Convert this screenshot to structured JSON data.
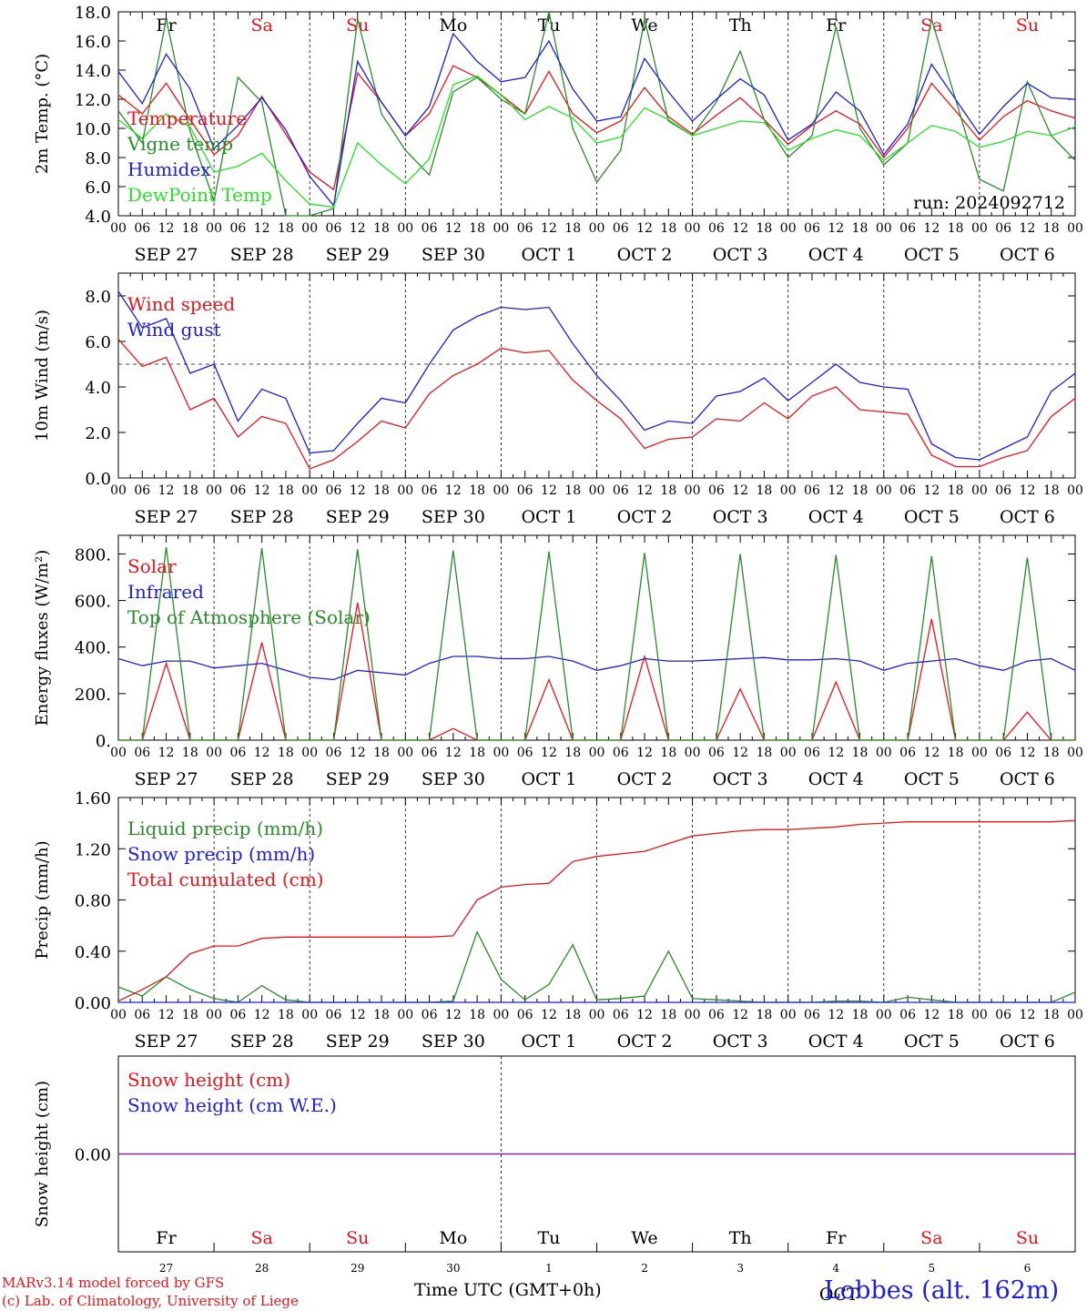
{
  "colors": {
    "red": "#e8141c",
    "green": "#2a8a2a",
    "blue": "#1c1ce0",
    "lightgreen": "#28e028",
    "purple": "#7a2a9a",
    "black": "#000000"
  },
  "weekdays": [
    "Fr",
    "Sa",
    "Su",
    "Mo",
    "Tu",
    "We",
    "Th",
    "Fr",
    "Sa",
    "Su"
  ],
  "weekend_days": [
    1,
    2,
    8,
    9
  ],
  "date_labels": [
    "SEP 27",
    "SEP 28",
    "SEP 29",
    "SEP 30",
    "OCT  1",
    "OCT  2",
    "OCT  3",
    "OCT  4",
    "OCT  5",
    "OCT  6"
  ],
  "hour_ticks": [
    "00",
    "06",
    "12",
    "18"
  ],
  "hour_tick_end": "00",
  "day_numbers": [
    "27",
    "28",
    "29",
    "30",
    "1",
    "2",
    "3",
    "4",
    "5",
    "6"
  ],
  "month_bottom": "OCT",
  "footer": {
    "model": "MARv3.14 model forced by GFS",
    "lab": "(c) Lab. of Climatology, University of Liege",
    "xlabel": "Time UTC (GMT+0h)",
    "station": "Lobbes (alt. 162m)"
  },
  "chart_data": [
    {
      "type": "line",
      "ylabel": "2m Temp. (°C)",
      "ylim": [
        4,
        18
      ],
      "yticks": [
        "4.0",
        "6.0",
        "8.0",
        "10.0",
        "12.0",
        "14.0",
        "16.0",
        "18.0"
      ],
      "annotation": "run: 2024092712",
      "x_hours": [
        0,
        6,
        12,
        18,
        24,
        30,
        36,
        42,
        48,
        54,
        60,
        66,
        72,
        78,
        84,
        90,
        96,
        102,
        108,
        114,
        120,
        126,
        132,
        138,
        144,
        150,
        156,
        162,
        168,
        174,
        180,
        186,
        192,
        198,
        204,
        210,
        216,
        222,
        228,
        234,
        240
      ],
      "series": [
        {
          "name": "Temperature",
          "color": "red",
          "values": [
            12.3,
            11.0,
            13.1,
            10.6,
            8.2,
            9.5,
            12.2,
            9.6,
            7.0,
            5.8,
            13.8,
            11.8,
            9.5,
            11.0,
            14.3,
            13.5,
            12.3,
            11.0,
            13.9,
            11.0,
            9.7,
            10.5,
            12.8,
            10.8,
            9.6,
            10.9,
            12.1,
            10.6,
            8.9,
            10.2,
            11.2,
            10.3,
            8.0,
            10.0,
            13.1,
            11.2,
            9.2,
            10.8,
            11.9,
            11.2,
            10.7
          ]
        },
        {
          "name": "Vigne temp",
          "color": "green",
          "values": [
            11.2,
            9.0,
            17.5,
            9.8,
            5.0,
            13.5,
            11.8,
            4.0,
            4.0,
            4.5,
            17.5,
            11.0,
            8.5,
            6.8,
            12.5,
            13.5,
            12.0,
            11.0,
            18.0,
            10.0,
            6.3,
            8.5,
            17.5,
            10.5,
            9.5,
            11.8,
            15.3,
            10.6,
            8.0,
            9.5,
            17.0,
            10.0,
            7.5,
            9.0,
            17.5,
            12.0,
            6.5,
            5.7,
            13.2,
            9.5,
            7.8
          ]
        },
        {
          "name": "Humidex",
          "color": "blue",
          "values": [
            13.9,
            11.7,
            15.1,
            12.7,
            8.6,
            10.2,
            12.1,
            9.9,
            6.7,
            4.7,
            14.6,
            11.8,
            9.5,
            11.5,
            16.5,
            14.6,
            13.2,
            13.5,
            16.0,
            12.7,
            10.5,
            10.8,
            14.8,
            12.5,
            10.5,
            12.0,
            13.4,
            12.3,
            9.2,
            10.3,
            12.5,
            11.2,
            8.2,
            10.3,
            14.4,
            12.0,
            9.6,
            11.5,
            13.1,
            12.1,
            12.0
          ]
        },
        {
          "name": "DewPoint Temp",
          "color": "lightgreen",
          "values": [
            10.6,
            9.3,
            11.0,
            10.1,
            7.0,
            7.4,
            8.3,
            6.4,
            4.8,
            4.6,
            9.0,
            7.5,
            6.2,
            7.9,
            13.0,
            13.6,
            12.3,
            10.6,
            11.5,
            10.7,
            9.0,
            9.4,
            11.4,
            10.6,
            9.5,
            10.0,
            10.5,
            10.4,
            8.5,
            9.3,
            9.9,
            9.5,
            7.8,
            9.0,
            10.2,
            9.8,
            8.7,
            9.1,
            9.8,
            9.5,
            10.1
          ]
        }
      ]
    },
    {
      "type": "line",
      "ylabel": "10m Wind (m/s)",
      "ylim": [
        0,
        9
      ],
      "yticks": [
        "0.0",
        "2.0",
        "4.0",
        "6.0",
        "8.0"
      ],
      "reference_line": 5.0,
      "x_hours": [
        0,
        6,
        12,
        18,
        24,
        30,
        36,
        42,
        48,
        54,
        60,
        66,
        72,
        78,
        84,
        90,
        96,
        102,
        108,
        114,
        120,
        126,
        132,
        138,
        144,
        150,
        156,
        162,
        168,
        174,
        180,
        186,
        192,
        198,
        204,
        210,
        216,
        222,
        228,
        234,
        240
      ],
      "series": [
        {
          "name": "Wind speed",
          "color": "red",
          "values": [
            6.1,
            4.9,
            5.3,
            3.0,
            3.5,
            1.8,
            2.7,
            2.4,
            0.4,
            0.8,
            1.6,
            2.5,
            2.2,
            3.7,
            4.5,
            5.0,
            5.7,
            5.5,
            5.6,
            4.3,
            3.4,
            2.6,
            1.3,
            1.7,
            1.8,
            2.6,
            2.5,
            3.3,
            2.6,
            3.6,
            4.0,
            3.0,
            2.9,
            2.8,
            1.0,
            0.5,
            0.5,
            0.9,
            1.2,
            2.7,
            3.5
          ]
        },
        {
          "name": "Wind gust",
          "color": "blue",
          "values": [
            8.2,
            6.6,
            7.0,
            4.6,
            5.0,
            2.5,
            3.9,
            3.5,
            1.1,
            1.2,
            2.4,
            3.5,
            3.3,
            5.0,
            6.5,
            7.1,
            7.5,
            7.4,
            7.5,
            5.9,
            4.5,
            3.4,
            2.1,
            2.5,
            2.4,
            3.6,
            3.8,
            4.4,
            3.4,
            4.2,
            5.0,
            4.2,
            4.0,
            3.9,
            1.5,
            0.9,
            0.8,
            1.3,
            1.8,
            3.8,
            4.6
          ]
        }
      ]
    },
    {
      "type": "line",
      "ylabel": "Energy fluxes (W/m²)",
      "ylim": [
        0,
        880
      ],
      "yticks": [
        "0.",
        "200.",
        "400.",
        "600.",
        "800."
      ],
      "x_hours": [
        0,
        6,
        12,
        18,
        24,
        30,
        36,
        42,
        48,
        54,
        60,
        66,
        72,
        78,
        84,
        90,
        96,
        102,
        108,
        114,
        120,
        126,
        132,
        138,
        144,
        150,
        156,
        162,
        168,
        174,
        180,
        186,
        192,
        198,
        204,
        210,
        216,
        222,
        228,
        234,
        240
      ],
      "series": [
        {
          "name": "Solar",
          "color": "red",
          "values": [
            0,
            0,
            330,
            0,
            0,
            0,
            420,
            0,
            0,
            0,
            590,
            0,
            0,
            0,
            50,
            0,
            0,
            0,
            260,
            0,
            0,
            0,
            360,
            0,
            0,
            0,
            220,
            0,
            0,
            0,
            250,
            0,
            0,
            0,
            520,
            0,
            0,
            0,
            120,
            0,
            0
          ]
        },
        {
          "name": "Infrared",
          "color": "blue",
          "values": [
            350,
            320,
            340,
            340,
            310,
            320,
            330,
            300,
            270,
            260,
            300,
            290,
            280,
            330,
            360,
            360,
            350,
            350,
            360,
            340,
            300,
            320,
            350,
            340,
            340,
            345,
            350,
            355,
            345,
            345,
            350,
            340,
            300,
            330,
            340,
            350,
            320,
            300,
            340,
            350,
            300
          ]
        },
        {
          "name": "Top of Atmosphere (Solar)",
          "color": "green",
          "values": [
            0,
            0,
            830,
            0,
            0,
            0,
            825,
            0,
            0,
            0,
            820,
            0,
            0,
            0,
            815,
            0,
            0,
            0,
            810,
            0,
            0,
            0,
            805,
            0,
            0,
            0,
            800,
            0,
            0,
            0,
            795,
            0,
            0,
            0,
            790,
            0,
            0,
            0,
            785,
            0,
            0
          ]
        }
      ]
    },
    {
      "type": "line",
      "ylabel": "Precip (mm/h)",
      "ylim": [
        0,
        1.6
      ],
      "yticks": [
        "0.00",
        "0.40",
        "0.80",
        "1.20",
        "1.60"
      ],
      "x_hours": [
        0,
        6,
        12,
        18,
        24,
        30,
        36,
        42,
        48,
        54,
        60,
        66,
        72,
        78,
        84,
        90,
        96,
        102,
        108,
        114,
        120,
        126,
        132,
        138,
        144,
        150,
        156,
        162,
        168,
        174,
        180,
        186,
        192,
        198,
        204,
        210,
        216,
        222,
        228,
        234,
        240
      ],
      "series": [
        {
          "name": "Liquid precip (mm/h)",
          "color": "green",
          "values": [
            0.12,
            0.05,
            0.2,
            0.1,
            0.03,
            0.0,
            0.13,
            0.02,
            0.0,
            0.0,
            0.0,
            0.0,
            0.0,
            0.0,
            0.01,
            0.55,
            0.18,
            0.02,
            0.14,
            0.45,
            0.02,
            0.03,
            0.05,
            0.4,
            0.03,
            0.02,
            0.01,
            0.0,
            0.0,
            0.0,
            0.01,
            0.01,
            0.0,
            0.04,
            0.02,
            0.0,
            0.0,
            0.0,
            0.0,
            0.0,
            0.08
          ]
        },
        {
          "name": "Snow precip (mm/h)",
          "color": "blue",
          "values": [
            0,
            0,
            0,
            0,
            0,
            0,
            0,
            0,
            0,
            0,
            0,
            0,
            0,
            0,
            0,
            0,
            0,
            0,
            0,
            0,
            0,
            0,
            0,
            0,
            0,
            0,
            0,
            0,
            0,
            0,
            0,
            0,
            0,
            0,
            0,
            0,
            0,
            0,
            0,
            0,
            0
          ]
        },
        {
          "name": "Total cumulated (cm)",
          "color": "red",
          "values": [
            0.01,
            0.1,
            0.2,
            0.38,
            0.44,
            0.44,
            0.5,
            0.51,
            0.51,
            0.51,
            0.51,
            0.51,
            0.51,
            0.51,
            0.52,
            0.8,
            0.9,
            0.92,
            0.93,
            1.1,
            1.14,
            1.16,
            1.18,
            1.24,
            1.3,
            1.32,
            1.34,
            1.35,
            1.35,
            1.36,
            1.37,
            1.39,
            1.4,
            1.41,
            1.41,
            1.41,
            1.41,
            1.41,
            1.41,
            1.41,
            1.42
          ]
        }
      ]
    },
    {
      "type": "line",
      "ylabel": "Snow height (cm)",
      "ylim": [
        -1,
        1
      ],
      "yticks": [
        "0.00"
      ],
      "x_hours": [
        0,
        240
      ],
      "series": [
        {
          "name": "Snow height (cm)",
          "color": "red",
          "values": [
            0,
            0
          ]
        },
        {
          "name": "Snow height (cm W.E.)",
          "color": "blue",
          "values": [
            0,
            0
          ]
        }
      ]
    }
  ]
}
